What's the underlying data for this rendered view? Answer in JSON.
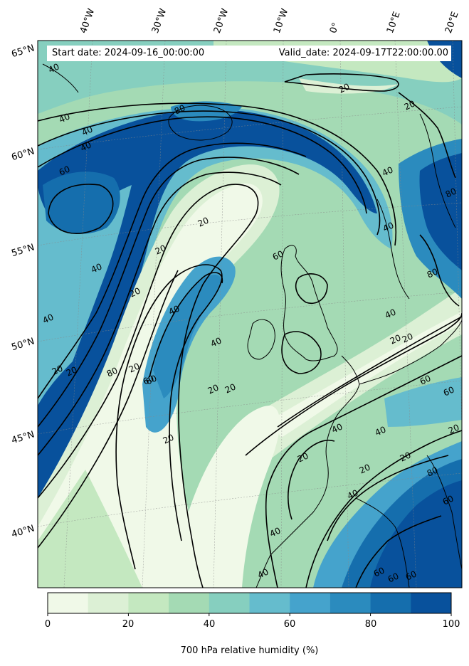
{
  "header": {
    "start_date": "Start date: 2024-09-16_00:00:00",
    "valid_date": "Valid_date: 2024-09-17T22:00:00.00"
  },
  "map": {
    "longitude_labels": [
      "40°W",
      "30°W",
      "20°W",
      "10°W",
      "0°",
      "10°E",
      "20°E"
    ],
    "latitude_labels": [
      "65°N",
      "60°N",
      "55°N",
      "50°N",
      "45°N",
      "40°N"
    ],
    "contour_levels": [
      "20",
      "40",
      "60",
      "80"
    ],
    "contour_labels": [
      "40",
      "40",
      "40",
      "40",
      "60",
      "40",
      "40",
      "20",
      "20",
      "80",
      "20",
      "20",
      "20",
      "60",
      "40",
      "40",
      "60",
      "80",
      "20",
      "20",
      "40",
      "80",
      "20",
      "20",
      "60",
      "20",
      "40",
      "40",
      "20",
      "20",
      "40",
      "20",
      "40",
      "60",
      "20",
      "20",
      "40",
      "60",
      "60",
      "40",
      "80",
      "80",
      "80",
      "40",
      "60",
      "60",
      "60",
      "20",
      "20"
    ]
  },
  "colorbar": {
    "label": "700 hPa relative humidity (%)",
    "ticks": [
      "0",
      "20",
      "40",
      "60",
      "80",
      "100"
    ],
    "colors": [
      "#f0f9e8",
      "#dcf0d5",
      "#c4e8c0",
      "#a4dab4",
      "#86cfbf",
      "#65bccd",
      "#45a3cc",
      "#2b8bbe",
      "#156ead",
      "#08519c"
    ]
  }
}
